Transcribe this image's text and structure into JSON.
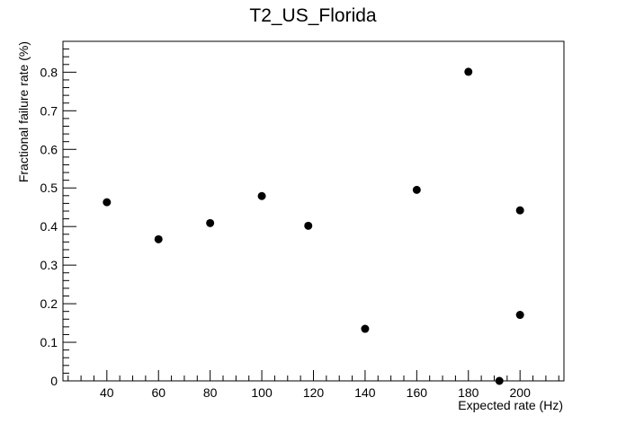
{
  "chart_data": {
    "type": "scatter",
    "title": "T2_US_Florida",
    "xlabel": "Expected rate (Hz)",
    "ylabel": "Fractional failure rate (%)",
    "xlim": [
      23,
      217
    ],
    "ylim": [
      0,
      0.88
    ],
    "x_ticks": [
      40,
      60,
      80,
      100,
      120,
      140,
      160,
      180,
      200
    ],
    "y_ticks": [
      0,
      0.1,
      0.2,
      0.3,
      0.4,
      0.5,
      0.6,
      0.7,
      0.8
    ],
    "grid": false,
    "legend": "none",
    "marker_color": "#000000",
    "points": [
      {
        "x": 40,
        "y": 0.463
      },
      {
        "x": 60,
        "y": 0.367
      },
      {
        "x": 80,
        "y": 0.409
      },
      {
        "x": 100,
        "y": 0.479
      },
      {
        "x": 118,
        "y": 0.402
      },
      {
        "x": 140,
        "y": 0.135
      },
      {
        "x": 160,
        "y": 0.495
      },
      {
        "x": 180,
        "y": 0.801
      },
      {
        "x": 192,
        "y": 0.0
      },
      {
        "x": 200,
        "y": 0.171
      },
      {
        "x": 200,
        "y": 0.442
      }
    ]
  }
}
